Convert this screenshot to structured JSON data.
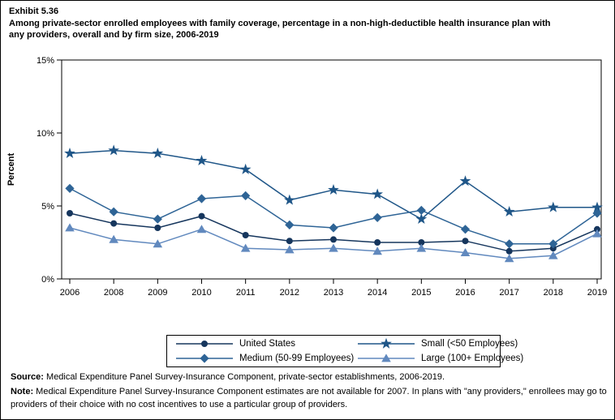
{
  "exhibit": {
    "label": "Exhibit 5.36",
    "title": "Among private-sector enrolled employees with family coverage, percentage in a non-high-deductible health insurance plan with any providers, overall and by firm size, 2006-2019"
  },
  "chart_data": {
    "type": "line",
    "title": "Among private-sector enrolled employees with family coverage, percentage in a non-high-deductible health insurance plan with any providers, overall and by firm size, 2006-2019",
    "x": [
      2006,
      2008,
      2009,
      2010,
      2011,
      2012,
      2013,
      2014,
      2015,
      2016,
      2017,
      2018,
      2019
    ],
    "series": [
      {
        "name": "United States",
        "marker": "circle",
        "color": "#16365D",
        "values": [
          4.5,
          3.8,
          3.5,
          4.3,
          3.0,
          2.6,
          2.7,
          2.5,
          2.5,
          2.6,
          1.9,
          2.1,
          3.4
        ]
      },
      {
        "name": "Small (<50 Employees)",
        "marker": "star",
        "color": "#1F5688",
        "values": [
          8.6,
          8.8,
          8.6,
          8.1,
          7.5,
          5.4,
          6.1,
          5.8,
          4.1,
          6.7,
          4.6,
          4.9,
          4.9
        ]
      },
      {
        "name": "Medium (50-99 Employees)",
        "marker": "diamond",
        "color": "#2E6496",
        "values": [
          6.2,
          4.6,
          4.1,
          5.5,
          5.7,
          3.7,
          3.5,
          4.2,
          4.7,
          3.4,
          2.4,
          2.4,
          4.5
        ]
      },
      {
        "name": "Large (100+ Employees)",
        "marker": "triangle",
        "color": "#6189BE",
        "values": [
          3.5,
          2.7,
          2.4,
          3.4,
          2.1,
          2.0,
          2.1,
          1.9,
          2.1,
          1.8,
          1.4,
          1.6,
          3.1
        ]
      }
    ],
    "xlabel": "",
    "ylabel": "Percent",
    "ylim": [
      0,
      15
    ],
    "yticks": [
      {
        "label": "0%",
        "value": 0
      },
      {
        "label": "5%",
        "value": 5
      },
      {
        "label": "10%",
        "value": 10
      },
      {
        "label": "15%",
        "value": 15
      }
    ],
    "grid": false,
    "legend_position": "bottom"
  },
  "footer": {
    "source_label": "Source:",
    "source_text": " Medical Expenditure Panel Survey-Insurance Component, private-sector establishments, 2006-2019.",
    "note_label": "Note:",
    "note_text": " Medical Expenditure Panel Survey-Insurance Component estimates are not available for 2007. In plans with \"any providers,\" enrollees may go to providers of their choice with no cost incentives to use a particular group of providers."
  }
}
